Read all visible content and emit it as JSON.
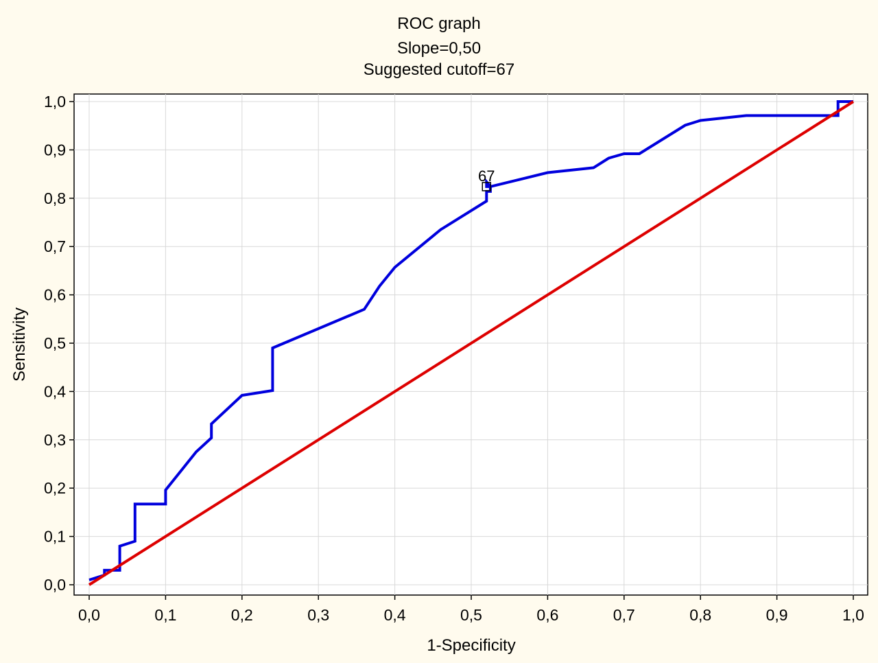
{
  "chart_data": {
    "type": "line",
    "title": "ROC graph",
    "subtitle_lines": [
      "Slope=0,50",
      "Suggested cutoff=67"
    ],
    "xlabel": "1-Specificity",
    "ylabel": "Sensitivity",
    "xlim": [
      0,
      1
    ],
    "ylim": [
      0,
      1
    ],
    "x_ticks": [
      "0,0",
      "0,1",
      "0,2",
      "0,3",
      "0,4",
      "0,5",
      "0,6",
      "0,7",
      "0,8",
      "0,9",
      "1,0"
    ],
    "y_ticks": [
      "0,0",
      "0,1",
      "0,2",
      "0,3",
      "0,4",
      "0,5",
      "0,6",
      "0,7",
      "0,8",
      "0,9",
      "1,0"
    ],
    "grid": true,
    "series": [
      {
        "color": "#0000dd",
        "x": [
          0.0,
          0.02,
          0.02,
          0.04,
          0.04,
          0.06,
          0.06,
          0.1,
          0.1,
          0.14,
          0.16,
          0.16,
          0.2,
          0.24,
          0.24,
          0.36,
          0.38,
          0.4,
          0.46,
          0.52,
          0.52,
          0.525,
          0.525,
          0.52,
          0.52,
          0.525,
          0.6,
          0.66,
          0.68,
          0.7,
          0.72,
          0.78,
          0.8,
          0.86,
          0.98,
          0.98,
          1.0
        ],
        "y": [
          0.01,
          0.02,
          0.03,
          0.03,
          0.08,
          0.09,
          0.167,
          0.167,
          0.196,
          0.275,
          0.304,
          0.333,
          0.392,
          0.402,
          0.49,
          0.57,
          0.618,
          0.657,
          0.735,
          0.794,
          0.814,
          0.814,
          0.824,
          0.824,
          0.834,
          0.824,
          0.853,
          0.863,
          0.883,
          0.892,
          0.892,
          0.951,
          0.961,
          0.971,
          0.971,
          1.0,
          1.0
        ]
      },
      {
        "color": "#dd0000",
        "x": [
          0.0,
          1.0
        ],
        "y": [
          0.0,
          1.0
        ]
      }
    ],
    "annotations": [
      {
        "text": "67",
        "x": 0.52,
        "y": 0.824
      }
    ]
  }
}
